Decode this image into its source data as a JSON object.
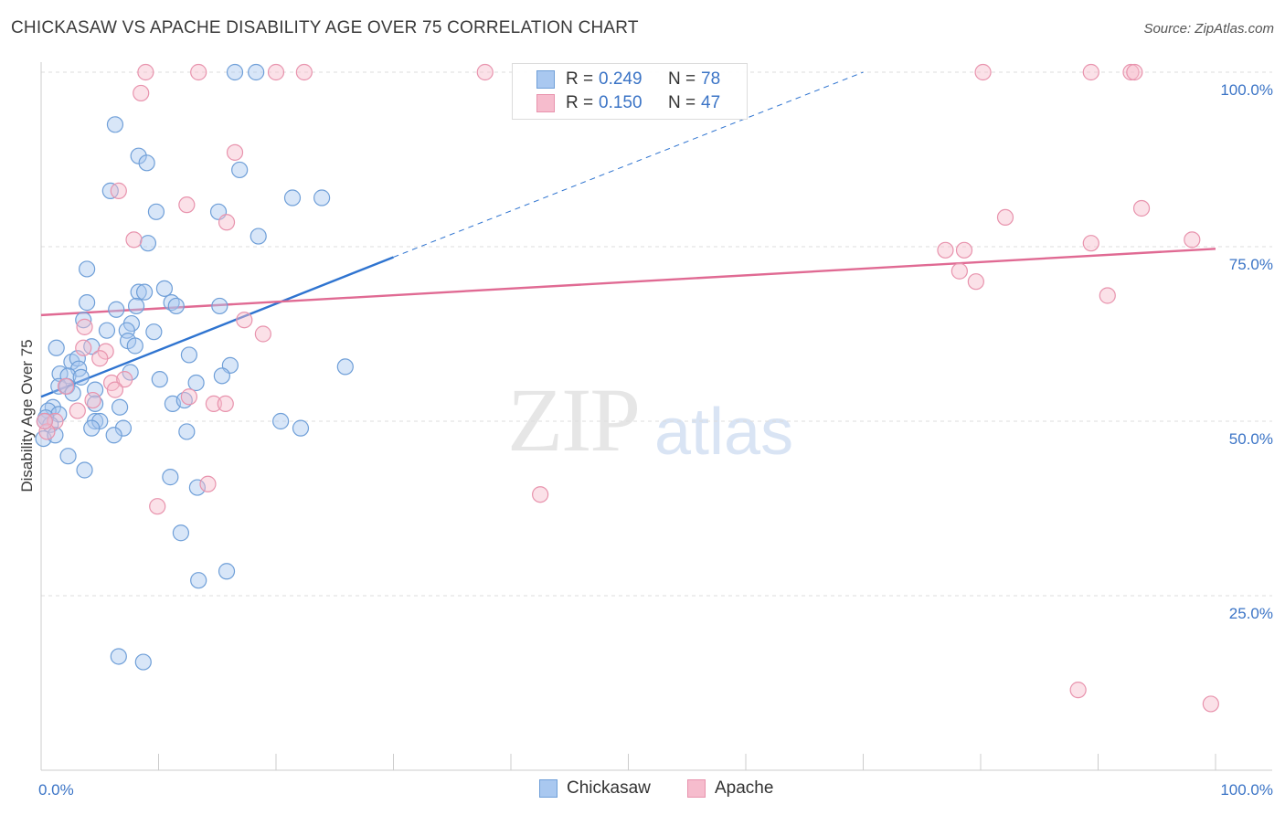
{
  "header": {
    "title": "CHICKASAW VS APACHE DISABILITY AGE OVER 75 CORRELATION CHART",
    "source": "Source: ZipAtlas.com"
  },
  "watermark": {
    "zip": "ZIP",
    "atlas": "atlas"
  },
  "legend": {
    "r_label": "R =",
    "n_label": "N =",
    "chickasaw": {
      "r": "0.249",
      "n": "78"
    },
    "apache": {
      "r": "0.150",
      "n": "47"
    }
  },
  "bottom_legend": {
    "chickasaw": "Chickasaw",
    "apache": "Apache"
  },
  "colors": {
    "chickasaw_fill": "#a9c8f0",
    "chickasaw_stroke": "#6f9fd8",
    "chickasaw_line": "#2f74d0",
    "apache_fill": "#f6bccd",
    "apache_stroke": "#e893ad",
    "apache_line": "#e06a93",
    "axis_label": "#3b74c6"
  },
  "chart_data": {
    "type": "scatter",
    "title": "CHICKASAW VS APACHE DISABILITY AGE OVER 75 CORRELATION CHART",
    "xlabel": "",
    "ylabel": "Disability Age Over 75",
    "xlim": [
      0,
      100
    ],
    "ylim": [
      0,
      100
    ],
    "x_tick_labels": [
      {
        "value": 0,
        "label": "0.0%"
      },
      {
        "value": 100,
        "label": "100.0%"
      }
    ],
    "y_tick_labels": [
      {
        "value": 25,
        "label": "25.0%"
      },
      {
        "value": 50,
        "label": "50.0%"
      },
      {
        "value": 75,
        "label": "75.0%"
      },
      {
        "value": 100,
        "label": "100.0%"
      }
    ],
    "grid": true,
    "series": [
      {
        "name": "Chickasaw",
        "trend": {
          "x0": 0,
          "y0": 53.5,
          "x1": 30,
          "y1": 73.5,
          "dashed_to_x": 70,
          "dashed_to_y": 100
        },
        "points": [
          [
            16.5,
            100
          ],
          [
            18.3,
            100
          ],
          [
            6.3,
            92.5
          ],
          [
            8.3,
            88
          ],
          [
            9.0,
            87
          ],
          [
            16.9,
            86
          ],
          [
            5.9,
            83
          ],
          [
            21.4,
            82
          ],
          [
            23.9,
            82
          ],
          [
            9.8,
            80
          ],
          [
            15.1,
            80
          ],
          [
            18.5,
            76.5
          ],
          [
            9.1,
            75.5
          ],
          [
            3.9,
            71.8
          ],
          [
            3.9,
            67
          ],
          [
            8.3,
            68.5
          ],
          [
            10.5,
            69
          ],
          [
            8.8,
            68.5
          ],
          [
            11.1,
            67
          ],
          [
            11.5,
            66.5
          ],
          [
            6.4,
            66
          ],
          [
            8.1,
            66.5
          ],
          [
            15.2,
            66.5
          ],
          [
            3.6,
            64.5
          ],
          [
            7.7,
            64
          ],
          [
            7.3,
            63
          ],
          [
            5.6,
            63
          ],
          [
            9.6,
            62.8
          ],
          [
            7.4,
            61.5
          ],
          [
            8.0,
            60.8
          ],
          [
            1.3,
            60.5
          ],
          [
            4.3,
            60.7
          ],
          [
            12.6,
            59.5
          ],
          [
            2.6,
            58.5
          ],
          [
            3.1,
            59
          ],
          [
            16.1,
            58
          ],
          [
            25.9,
            57.8
          ],
          [
            3.2,
            57.5
          ],
          [
            7.6,
            57
          ],
          [
            1.6,
            56.8
          ],
          [
            2.3,
            56.5
          ],
          [
            15.4,
            56.5
          ],
          [
            3.4,
            56.3
          ],
          [
            10.1,
            56
          ],
          [
            13.2,
            55.5
          ],
          [
            1.5,
            55
          ],
          [
            2.2,
            55
          ],
          [
            4.6,
            54.5
          ],
          [
            2.7,
            54
          ],
          [
            11.2,
            52.5
          ],
          [
            12.2,
            53
          ],
          [
            4.6,
            52.5
          ],
          [
            6.7,
            52
          ],
          [
            1.0,
            52
          ],
          [
            0.6,
            51.5
          ],
          [
            1.5,
            51
          ],
          [
            0.4,
            50.5
          ],
          [
            4.6,
            50
          ],
          [
            5.0,
            50
          ],
          [
            0.8,
            49.5
          ],
          [
            20.4,
            50
          ],
          [
            4.3,
            49
          ],
          [
            7.0,
            49
          ],
          [
            12.4,
            48.5
          ],
          [
            22.1,
            49
          ],
          [
            6.2,
            48
          ],
          [
            0.2,
            47.5
          ],
          [
            2.3,
            45
          ],
          [
            3.7,
            43
          ],
          [
            11.0,
            42
          ],
          [
            13.3,
            40.5
          ],
          [
            11.9,
            34
          ],
          [
            15.8,
            28.5
          ],
          [
            13.4,
            27.2
          ],
          [
            6.6,
            16.3
          ],
          [
            8.7,
            15.5
          ],
          [
            0.3,
            50
          ],
          [
            1.2,
            48
          ]
        ]
      },
      {
        "name": "Apache",
        "trend": {
          "x0": 0,
          "y0": 65.2,
          "x1": 100,
          "y1": 74.7
        },
        "points": [
          [
            8.9,
            100
          ],
          [
            13.4,
            100
          ],
          [
            20.0,
            100
          ],
          [
            22.4,
            100
          ],
          [
            37.8,
            100
          ],
          [
            80.2,
            100
          ],
          [
            89.4,
            100
          ],
          [
            92.8,
            100
          ],
          [
            93.1,
            100
          ],
          [
            8.5,
            97
          ],
          [
            16.5,
            88.5
          ],
          [
            6.6,
            83
          ],
          [
            12.4,
            81
          ],
          [
            82.1,
            79.2
          ],
          [
            93.7,
            80.5
          ],
          [
            15.8,
            78.5
          ],
          [
            7.9,
            76
          ],
          [
            98.0,
            76
          ],
          [
            89.4,
            75.5
          ],
          [
            77.0,
            74.5
          ],
          [
            78.6,
            74.5
          ],
          [
            78.2,
            71.5
          ],
          [
            79.6,
            70
          ],
          [
            90.8,
            68
          ],
          [
            17.3,
            64.5
          ],
          [
            18.9,
            62.5
          ],
          [
            3.7,
            63.5
          ],
          [
            3.6,
            60.5
          ],
          [
            5.5,
            60
          ],
          [
            5.0,
            59
          ],
          [
            6.0,
            55.5
          ],
          [
            7.1,
            56
          ],
          [
            2.1,
            55
          ],
          [
            6.3,
            54.5
          ],
          [
            12.6,
            53.5
          ],
          [
            4.4,
            53
          ],
          [
            14.7,
            52.5
          ],
          [
            3.1,
            51.5
          ],
          [
            1.2,
            50
          ],
          [
            0.5,
            48.5
          ],
          [
            15.7,
            52.5
          ],
          [
            14.2,
            41
          ],
          [
            9.9,
            37.8
          ],
          [
            42.5,
            39.5
          ],
          [
            88.3,
            11.5
          ],
          [
            99.6,
            9.5
          ],
          [
            0.3,
            50
          ]
        ]
      }
    ]
  }
}
